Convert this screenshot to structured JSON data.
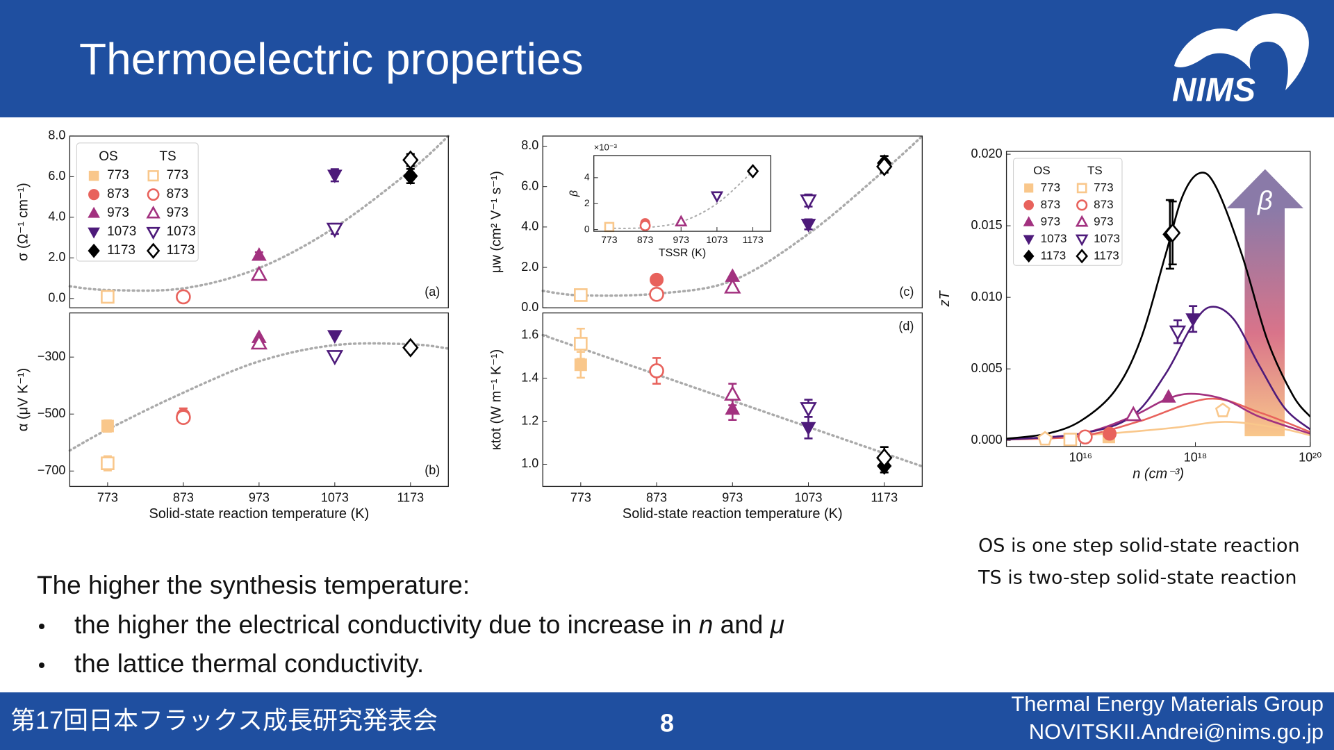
{
  "header": {
    "title": "Thermoelectric properties"
  },
  "legend": {
    "columns": [
      "OS",
      "TS"
    ],
    "labels": [
      "773",
      "873",
      "973",
      "1073",
      "1173"
    ],
    "colors": [
      "#f9c78b",
      "#e8625c",
      "#a2317f",
      "#4d1a7a",
      "#000000"
    ],
    "markers": [
      "square",
      "circle",
      "triangle-up",
      "triangle-down",
      "diamond"
    ]
  },
  "chart_data": [
    {
      "type": "scatter",
      "x": [
        773,
        873,
        973,
        1073,
        1173
      ],
      "xlim": [
        723,
        1223
      ],
      "ylim": [
        -0.46,
        8.0
      ],
      "yticks": [
        {
          "value": 0,
          "label": "0.0"
        },
        {
          "value": 2,
          "label": "2.0"
        },
        {
          "value": 4,
          "label": "4.0"
        },
        {
          "value": 6,
          "label": "6.0"
        },
        {
          "value": 8,
          "label": "8.0"
        }
      ],
      "ylabel": "σ (Ω⁻¹ cm⁻¹)",
      "panel_label": "(a)",
      "panel_label_corner": "lower right",
      "legend": "upper left",
      "trend": {
        "color": "#aaaaaa",
        "x": [
          723,
          773,
          873,
          973,
          1073,
          1173,
          1223
        ],
        "values": [
          0.6,
          0.42,
          0.5,
          1.5,
          3.5,
          6.3,
          8.0
        ]
      },
      "series": [
        {
          "filled": true,
          "values": [
            null,
            null,
            2.13,
            6.07,
            6.03
          ],
          "errors": [
            null,
            null,
            0.15,
            0.3,
            0.35
          ]
        },
        {
          "filled": false,
          "values": [
            0.08,
            0.08,
            1.17,
            3.43,
            6.82
          ],
          "errors": [
            null,
            null,
            null,
            0.25,
            0.3
          ]
        }
      ]
    },
    {
      "type": "scatter",
      "x": [
        773,
        873,
        973,
        1073,
        1173
      ],
      "xlim": [
        723,
        1223
      ],
      "xticks": [
        773,
        873,
        973,
        1073,
        1173
      ],
      "xlabel": "Solid-state reaction temperature (K)",
      "ylim": [
        -754,
        -145
      ],
      "yticks": [
        {
          "value": -300,
          "label": "−300"
        },
        {
          "value": -500,
          "label": "−500"
        },
        {
          "value": -700,
          "label": "−700"
        }
      ],
      "ylabel": "α (μV K⁻¹)",
      "panel_label": "(b)",
      "panel_label_corner": "lower right",
      "trend": {
        "color": "#aaaaaa",
        "x": [
          723,
          773,
          873,
          973,
          1073,
          1173,
          1223
        ],
        "values": [
          -628,
          -554,
          -425,
          -315,
          -258,
          -255,
          -270
        ]
      },
      "series": [
        {
          "filled": true,
          "values": [
            -542,
            -505,
            -231,
            -225,
            null
          ],
          "errors": [
            20,
            25,
            null,
            null,
            null
          ]
        },
        {
          "filled": false,
          "values": [
            -673,
            -512,
            -252,
            -297,
            -267
          ],
          "errors": [
            25,
            null,
            null,
            null,
            null
          ]
        }
      ]
    },
    {
      "type": "scatter",
      "x": [
        773,
        873,
        973,
        1073,
        1173
      ],
      "xlim": [
        723,
        1223
      ],
      "ylim": [
        0,
        8.5
      ],
      "yticks": [
        {
          "value": 0,
          "label": "0.0"
        },
        {
          "value": 2,
          "label": "2.0"
        },
        {
          "value": 4,
          "label": "4.0"
        },
        {
          "value": 6,
          "label": "6.0"
        },
        {
          "value": 8,
          "label": "8.0"
        }
      ],
      "ylabel": "μw (cm² V⁻¹ s⁻¹)",
      "panel_label": "(c)",
      "panel_label_corner": "lower right",
      "trend": {
        "color": "#aaaaaa",
        "x": [
          723,
          773,
          873,
          973,
          1073,
          1173,
          1223
        ],
        "values": [
          0.84,
          0.62,
          0.7,
          1.35,
          3.66,
          6.8,
          8.5
        ]
      },
      "series": [
        {
          "filled": true,
          "values": [
            null,
            1.39,
            1.56,
            4.13,
            7.16
          ],
          "errors": [
            null,
            null,
            null,
            0.25,
            0.35
          ]
        },
        {
          "filled": false,
          "values": [
            0.63,
            0.67,
            1.01,
            5.31,
            6.99
          ],
          "errors": [
            null,
            null,
            null,
            0.3,
            0.3
          ]
        }
      ]
    },
    {
      "type": "scatter",
      "x": [
        773,
        873,
        973,
        1073,
        1173
      ],
      "xlim": [
        730,
        1223
      ],
      "xticks": [
        773,
        873,
        973,
        1073,
        1173
      ],
      "xlabel": "TSSR (K)",
      "ylim": [
        -0.13,
        5.7
      ],
      "yticks": [
        0,
        2,
        4
      ],
      "ylabel": "β",
      "y_multiplier": "×10⁻³",
      "trend": {
        "color": "#aaaaaa",
        "x": [
          773,
          873,
          973,
          1073,
          1173
        ],
        "values": [
          0.1,
          0.15,
          0.6,
          2.0,
          4.5
        ]
      },
      "series": [
        {
          "filled": true,
          "values": [
            null,
            0.5,
            null,
            2.5,
            null
          ]
        },
        {
          "filled": false,
          "values": [
            0.2,
            0.3,
            0.6,
            2.6,
            4.5
          ]
        }
      ]
    },
    {
      "type": "scatter",
      "x": [
        773,
        873,
        973,
        1073,
        1173
      ],
      "xlim": [
        723,
        1223
      ],
      "xticks": [
        773,
        873,
        973,
        1073,
        1173
      ],
      "xlabel": "Solid-state reaction temperature (K)",
      "ylim": [
        0.897,
        1.703
      ],
      "yticks": [
        {
          "value": 1.0,
          "label": "1.0"
        },
        {
          "value": 1.2,
          "label": "1.2"
        },
        {
          "value": 1.4,
          "label": "1.4"
        },
        {
          "value": 1.6,
          "label": "1.6"
        }
      ],
      "ylabel": "κtot (W m⁻¹ K⁻¹)",
      "panel_label": "(d)",
      "panel_label_corner": "upper right",
      "trend": {
        "color": "#aaaaaa",
        "x": [
          723,
          1223
        ],
        "values": [
          1.6,
          0.99
        ]
      },
      "series": [
        {
          "filled": true,
          "values": [
            1.462,
            null,
            1.256,
            1.17,
            0.992
          ],
          "errors": [
            0.06,
            null,
            0.05,
            0.05,
            0.03
          ]
        },
        {
          "filled": false,
          "values": [
            1.56,
            1.434,
            1.324,
            1.26,
            1.03
          ],
          "errors": [
            0.07,
            0.06,
            0.05,
            0.04,
            0.05
          ]
        }
      ]
    },
    {
      "type": "scatter",
      "xlog": true,
      "xlim": [
        510000000000000.0,
        1e+20
      ],
      "xticks": [
        {
          "value": 1e+16,
          "label": "10¹⁶"
        },
        {
          "value": 1e+18,
          "label": "10¹⁸"
        },
        {
          "value": 1e+20,
          "label": "10²⁰"
        }
      ],
      "xlabel": "n (cm⁻³)",
      "ylim": [
        -0.00042,
        0.0202
      ],
      "yticks": [
        {
          "value": 0,
          "label": "0.000"
        },
        {
          "value": 0.005,
          "label": "0.005"
        },
        {
          "value": 0.01,
          "label": "0.010"
        },
        {
          "value": 0.015,
          "label": "0.015"
        },
        {
          "value": 0.02,
          "label": "0.020"
        }
      ],
      "ylabel": "zT",
      "legend": "upper left",
      "arrow_label": "β",
      "curves": [
        {
          "color": "#f9c78b",
          "x": [
            510000000000000.0,
            2.8e+16,
            4.3e+17,
            3.3e+18,
            2.6e+19,
            1e+20
          ],
          "values": [
            6e-05,
            0.00047,
            0.00089,
            0.0013,
            0.00089,
            0.00036
          ]
        },
        {
          "color": "#e8625c",
          "x": [
            510000000000000.0,
            1e+16,
            1.1e+17,
            1.7e+18,
            1.3e+19,
            1e+20
          ],
          "values": [
            6e-05,
            0.0003,
            0.00136,
            0.00291,
            0.00196,
            0.00059
          ]
        },
        {
          "color": "#a2317f",
          "x": [
            510000000000000.0,
            1e+16,
            7.7e+16,
            3e+17,
            8.4e+17,
            3.3e+18,
            1.3e+19,
            1e+20
          ],
          "values": [
            6e-05,
            0.00047,
            0.00166,
            0.00285,
            0.00326,
            0.00285,
            0.00166,
            0.00047
          ]
        },
        {
          "color": "#4d1a7a",
          "x": [
            510000000000000.0,
            1e+16,
            7.7e+16,
            3e+17,
            8.4e+17,
            1.8e+18,
            4.6e+18,
            1.3e+19,
            3.6e+19,
            1e+20
          ],
          "values": [
            6e-05,
            0.00047,
            0.00166,
            0.00463,
            0.0079,
            0.00932,
            0.00849,
            0.00522,
            0.00226,
            0.00077
          ]
        },
        {
          "color": "#000000",
          "x": [
            510000000000000.0,
            2600000000000000.0,
            1e+16,
            3.9e+16,
            1.1e+17,
            3e+17,
            6e+17,
            1.2e+18,
            2.3e+18,
            6.5e+18,
            1.8e+19,
            5e+19,
            1e+20
          ],
          "values": [
            0.00012,
            0.00047,
            0.00136,
            0.00344,
            0.007,
            0.01294,
            0.01709,
            0.01869,
            0.01769,
            0.01294,
            0.007,
            0.00315,
            0.00166
          ]
        }
      ],
      "series": [
        {
          "filled": true,
          "x": [
            3.1e+16,
            3.2e+16,
            3.4e+17,
            9.1e+17,
            3.6e+17
          ],
          "values": [
            0.00024,
            0.00047,
            0.00303,
            0.00849,
            0.0144
          ],
          "errors": [
            null,
            null,
            null,
            0.0009,
            0.0024
          ]
        },
        {
          "filled": false,
          "x": [
            6600000000000000.0,
            1.2e+16,
            8.3e+16,
            4.9e+17,
            4e+17
          ],
          "values": [
            6e-05,
            0.00024,
            0.00178,
            0.0076,
            0.0145
          ],
          "errors": [
            null,
            null,
            null,
            0.0008,
            0.0022
          ]
        },
        {
          "filled": false,
          "marker": "pentagon",
          "color": "#f9c78b",
          "x": [
            2400000000000000.0,
            3e+18
          ],
          "values": [
            0.0001,
            0.00208
          ]
        }
      ]
    }
  ],
  "body": {
    "lead": "The higher the synthesis temperature:",
    "bullets": [
      [
        "the higher the electrical conductivity due to increase in ",
        "n",
        " and ",
        "μ"
      ],
      [
        "the lattice thermal conductivity."
      ]
    ]
  },
  "notes": [
    "OS is one step solid-state reaction",
    "TS is two-step solid-state reaction"
  ],
  "footer": {
    "event": "第17回日本フラックス成長研究発表会",
    "page": "8",
    "group": "Thermal Energy Materials Group",
    "email": "NOVITSKII.Andrei@nims.go.jp"
  }
}
